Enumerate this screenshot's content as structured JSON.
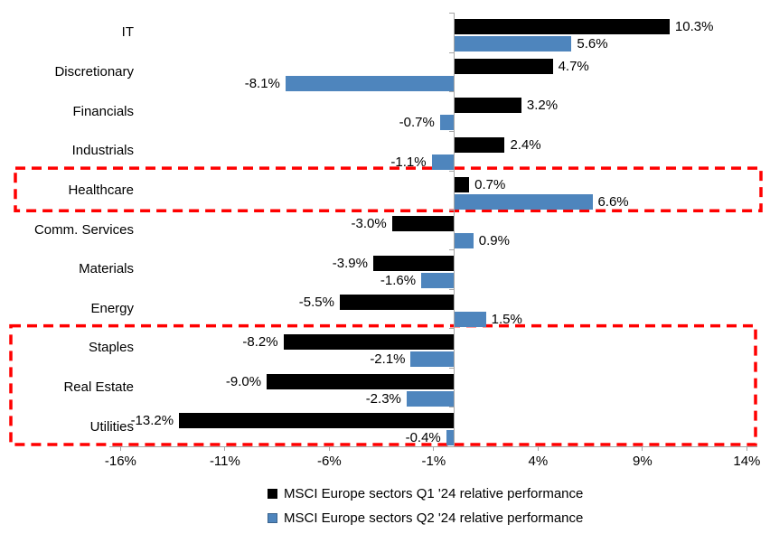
{
  "chart_data": {
    "type": "bar",
    "orientation": "horizontal",
    "title": "",
    "categories": [
      "IT",
      "Discretionary",
      "Financials",
      "Industrials",
      "Healthcare",
      "Comm. Services",
      "Materials",
      "Energy",
      "Staples",
      "Real Estate",
      "Utilities"
    ],
    "series": [
      {
        "name": "MSCI Europe sectors Q1 '24 relative performance",
        "color": "#000000",
        "values": [
          10.3,
          4.7,
          3.2,
          2.4,
          0.7,
          -3.0,
          -3.9,
          -5.5,
          -8.2,
          -9.0,
          -13.2
        ],
        "labels": [
          "10.3%",
          "4.7%",
          "3.2%",
          "2.4%",
          "0.7%",
          "-3.0%",
          "-3.9%",
          "-5.5%",
          "-8.2%",
          "-9.0%",
          "-13.2%"
        ]
      },
      {
        "name": "MSCI Europe sectors Q2 '24 relative performance",
        "color": "#4E85BD",
        "values": [
          5.6,
          -8.1,
          -0.7,
          -1.1,
          6.6,
          0.9,
          -1.6,
          1.5,
          -2.1,
          -2.3,
          -0.4
        ],
        "labels": [
          "5.6%",
          "-8.1%",
          "-0.7%",
          "-1.1%",
          "6.6%",
          "0.9%",
          "-1.6%",
          "1.5%",
          "-2.1%",
          "-2.3%",
          "-0.4%"
        ]
      }
    ],
    "x_axis": {
      "tick_values": [
        -16,
        -11,
        -6,
        -1,
        4,
        9,
        14
      ],
      "tick_labels": [
        "-16%",
        "-11%",
        "-6%",
        "-1%",
        "4%",
        "9%",
        "14%"
      ]
    },
    "xlim": [
      -16,
      14
    ],
    "grid": false,
    "legend_position": "bottom",
    "axis_color": "#A6A6A6",
    "text_color": "#000000",
    "highlights": [
      {
        "name": "healthcare-highlight-box",
        "categories": [
          "Healthcare"
        ],
        "color": "#FF0000",
        "style": "dashed"
      },
      {
        "name": "defensive-sectors-highlight-box",
        "categories": [
          "Staples",
          "Real Estate",
          "Utilities"
        ],
        "color": "#FF0000",
        "style": "dashed"
      }
    ]
  }
}
